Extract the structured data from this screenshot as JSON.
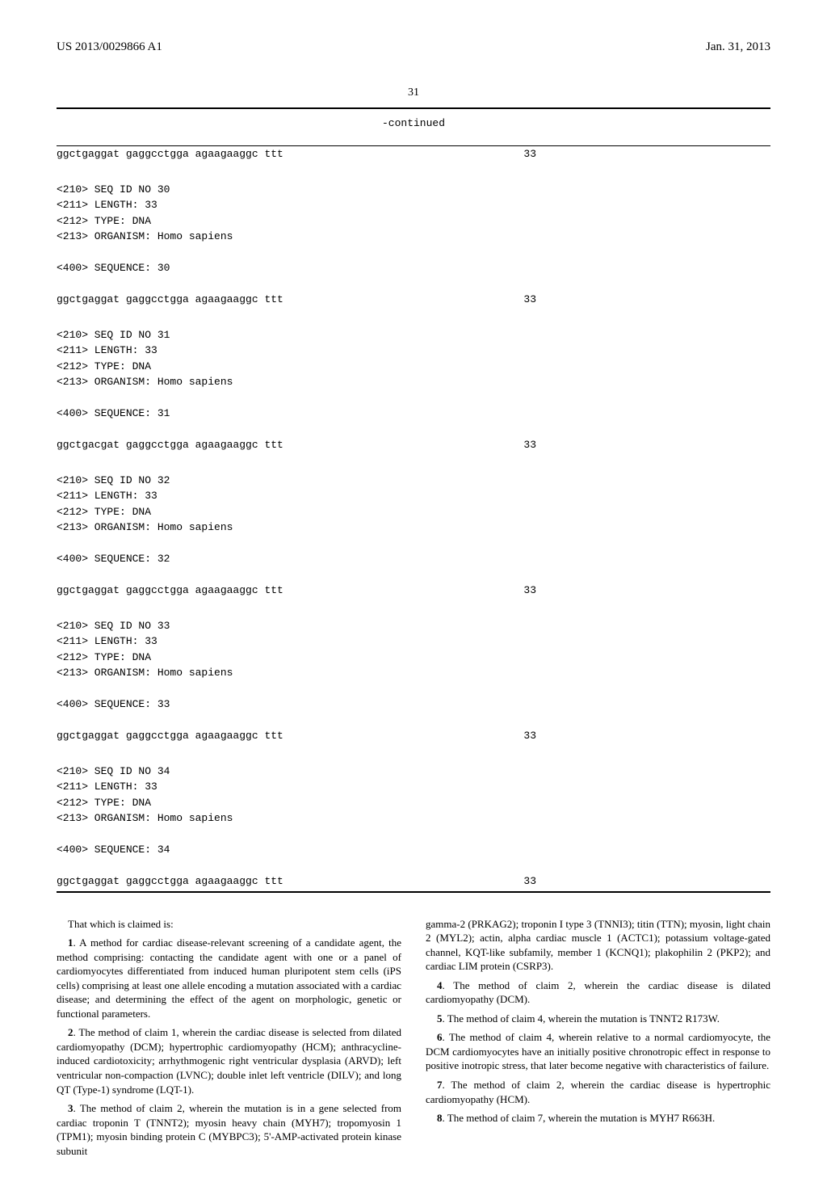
{
  "header": {
    "pub_number": "US 2013/0029866 A1",
    "pub_date": "Jan. 31, 2013"
  },
  "page_number": "31",
  "continued_label": "-continued",
  "sequences": [
    {
      "seq_text": "ggctgaggat gaggcctgga agaagaaggc ttt",
      "seq_len": "33",
      "header_lines": []
    },
    {
      "header_lines": [
        "<210> SEQ ID NO 30",
        "<211> LENGTH: 33",
        "<212> TYPE: DNA",
        "<213> ORGANISM: Homo sapiens",
        "",
        "<400> SEQUENCE: 30"
      ],
      "seq_text": "ggctgaggat gaggcctgga agaagaaggc ttt",
      "seq_len": "33"
    },
    {
      "header_lines": [
        "<210> SEQ ID NO 31",
        "<211> LENGTH: 33",
        "<212> TYPE: DNA",
        "<213> ORGANISM: Homo sapiens",
        "",
        "<400> SEQUENCE: 31"
      ],
      "seq_text": "ggctgacgat gaggcctgga agaagaaggc ttt",
      "seq_len": "33"
    },
    {
      "header_lines": [
        "<210> SEQ ID NO 32",
        "<211> LENGTH: 33",
        "<212> TYPE: DNA",
        "<213> ORGANISM: Homo sapiens",
        "",
        "<400> SEQUENCE: 32"
      ],
      "seq_text": "ggctgaggat gaggcctgga agaagaaggc ttt",
      "seq_len": "33"
    },
    {
      "header_lines": [
        "<210> SEQ ID NO 33",
        "<211> LENGTH: 33",
        "<212> TYPE: DNA",
        "<213> ORGANISM: Homo sapiens",
        "",
        "<400> SEQUENCE: 33"
      ],
      "seq_text": "ggctgaggat gaggcctgga agaagaaggc ttt",
      "seq_len": "33"
    },
    {
      "header_lines": [
        "<210> SEQ ID NO 34",
        "<211> LENGTH: 33",
        "<212> TYPE: DNA",
        "<213> ORGANISM: Homo sapiens",
        "",
        "<400> SEQUENCE: 34"
      ],
      "seq_text": "ggctgaggat gaggcctgga agaagaaggc ttt",
      "seq_len": "33"
    }
  ],
  "claims": {
    "col1": {
      "intro": "That which is claimed is:",
      "p1": "1. A method for cardiac disease-relevant screening of a candidate agent, the method comprising: contacting the candidate agent with one or a panel of cardiomyocytes differentiated from induced human pluripotent stem cells (iPS cells) comprising at least one allele encoding a mutation associated with a cardiac disease; and determining the effect of the agent on morphologic, genetic or functional parameters.",
      "p2": "2. The method of claim 1, wherein the cardiac disease is selected from dilated cardiomyopathy (DCM); hypertrophic cardiomyopathy (HCM); anthracycline-induced cardiotoxicity; arrhythmogenic right ventricular dysplasia (ARVD); left ventricular non-compaction (LVNC); double inlet left ventricle (DILV); and long QT (Type-1) syndrome (LQT-1).",
      "p3": "3. The method of claim 2, wherein the mutation is in a gene selected from cardiac troponin T (TNNT2); myosin heavy chain (MYH7); tropomyosin 1 (TPM1); myosin binding protein C (MYBPC3); 5'-AMP-activated protein kinase subunit"
    },
    "col2": {
      "p1": "gamma-2 (PRKAG2); troponin I type 3 (TNNI3); titin (TTN); myosin, light chain 2 (MYL2); actin, alpha cardiac muscle 1 (ACTC1); potassium voltage-gated channel, KQT-like subfamily, member 1 (KCNQ1); plakophilin 2 (PKP2); and cardiac LIM protein (CSRP3).",
      "p2": "4. The method of claim 2, wherein the cardiac disease is dilated cardiomyopathy (DCM).",
      "p3": "5. The method of claim 4, wherein the mutation is TNNT2 R173W.",
      "p4": "6. The method of claim 4, wherein relative to a normal cardiomyocyte, the DCM cardiomyocytes have an initially positive chronotropic effect in response to positive inotropic stress, that later become negative with characteristics of failure.",
      "p5": "7. The method of claim 2, wherein the cardiac disease is hypertrophic cardiomyopathy (HCM).",
      "p6": "8. The method of claim 7, wherein the mutation is MYH7 R663H."
    }
  }
}
